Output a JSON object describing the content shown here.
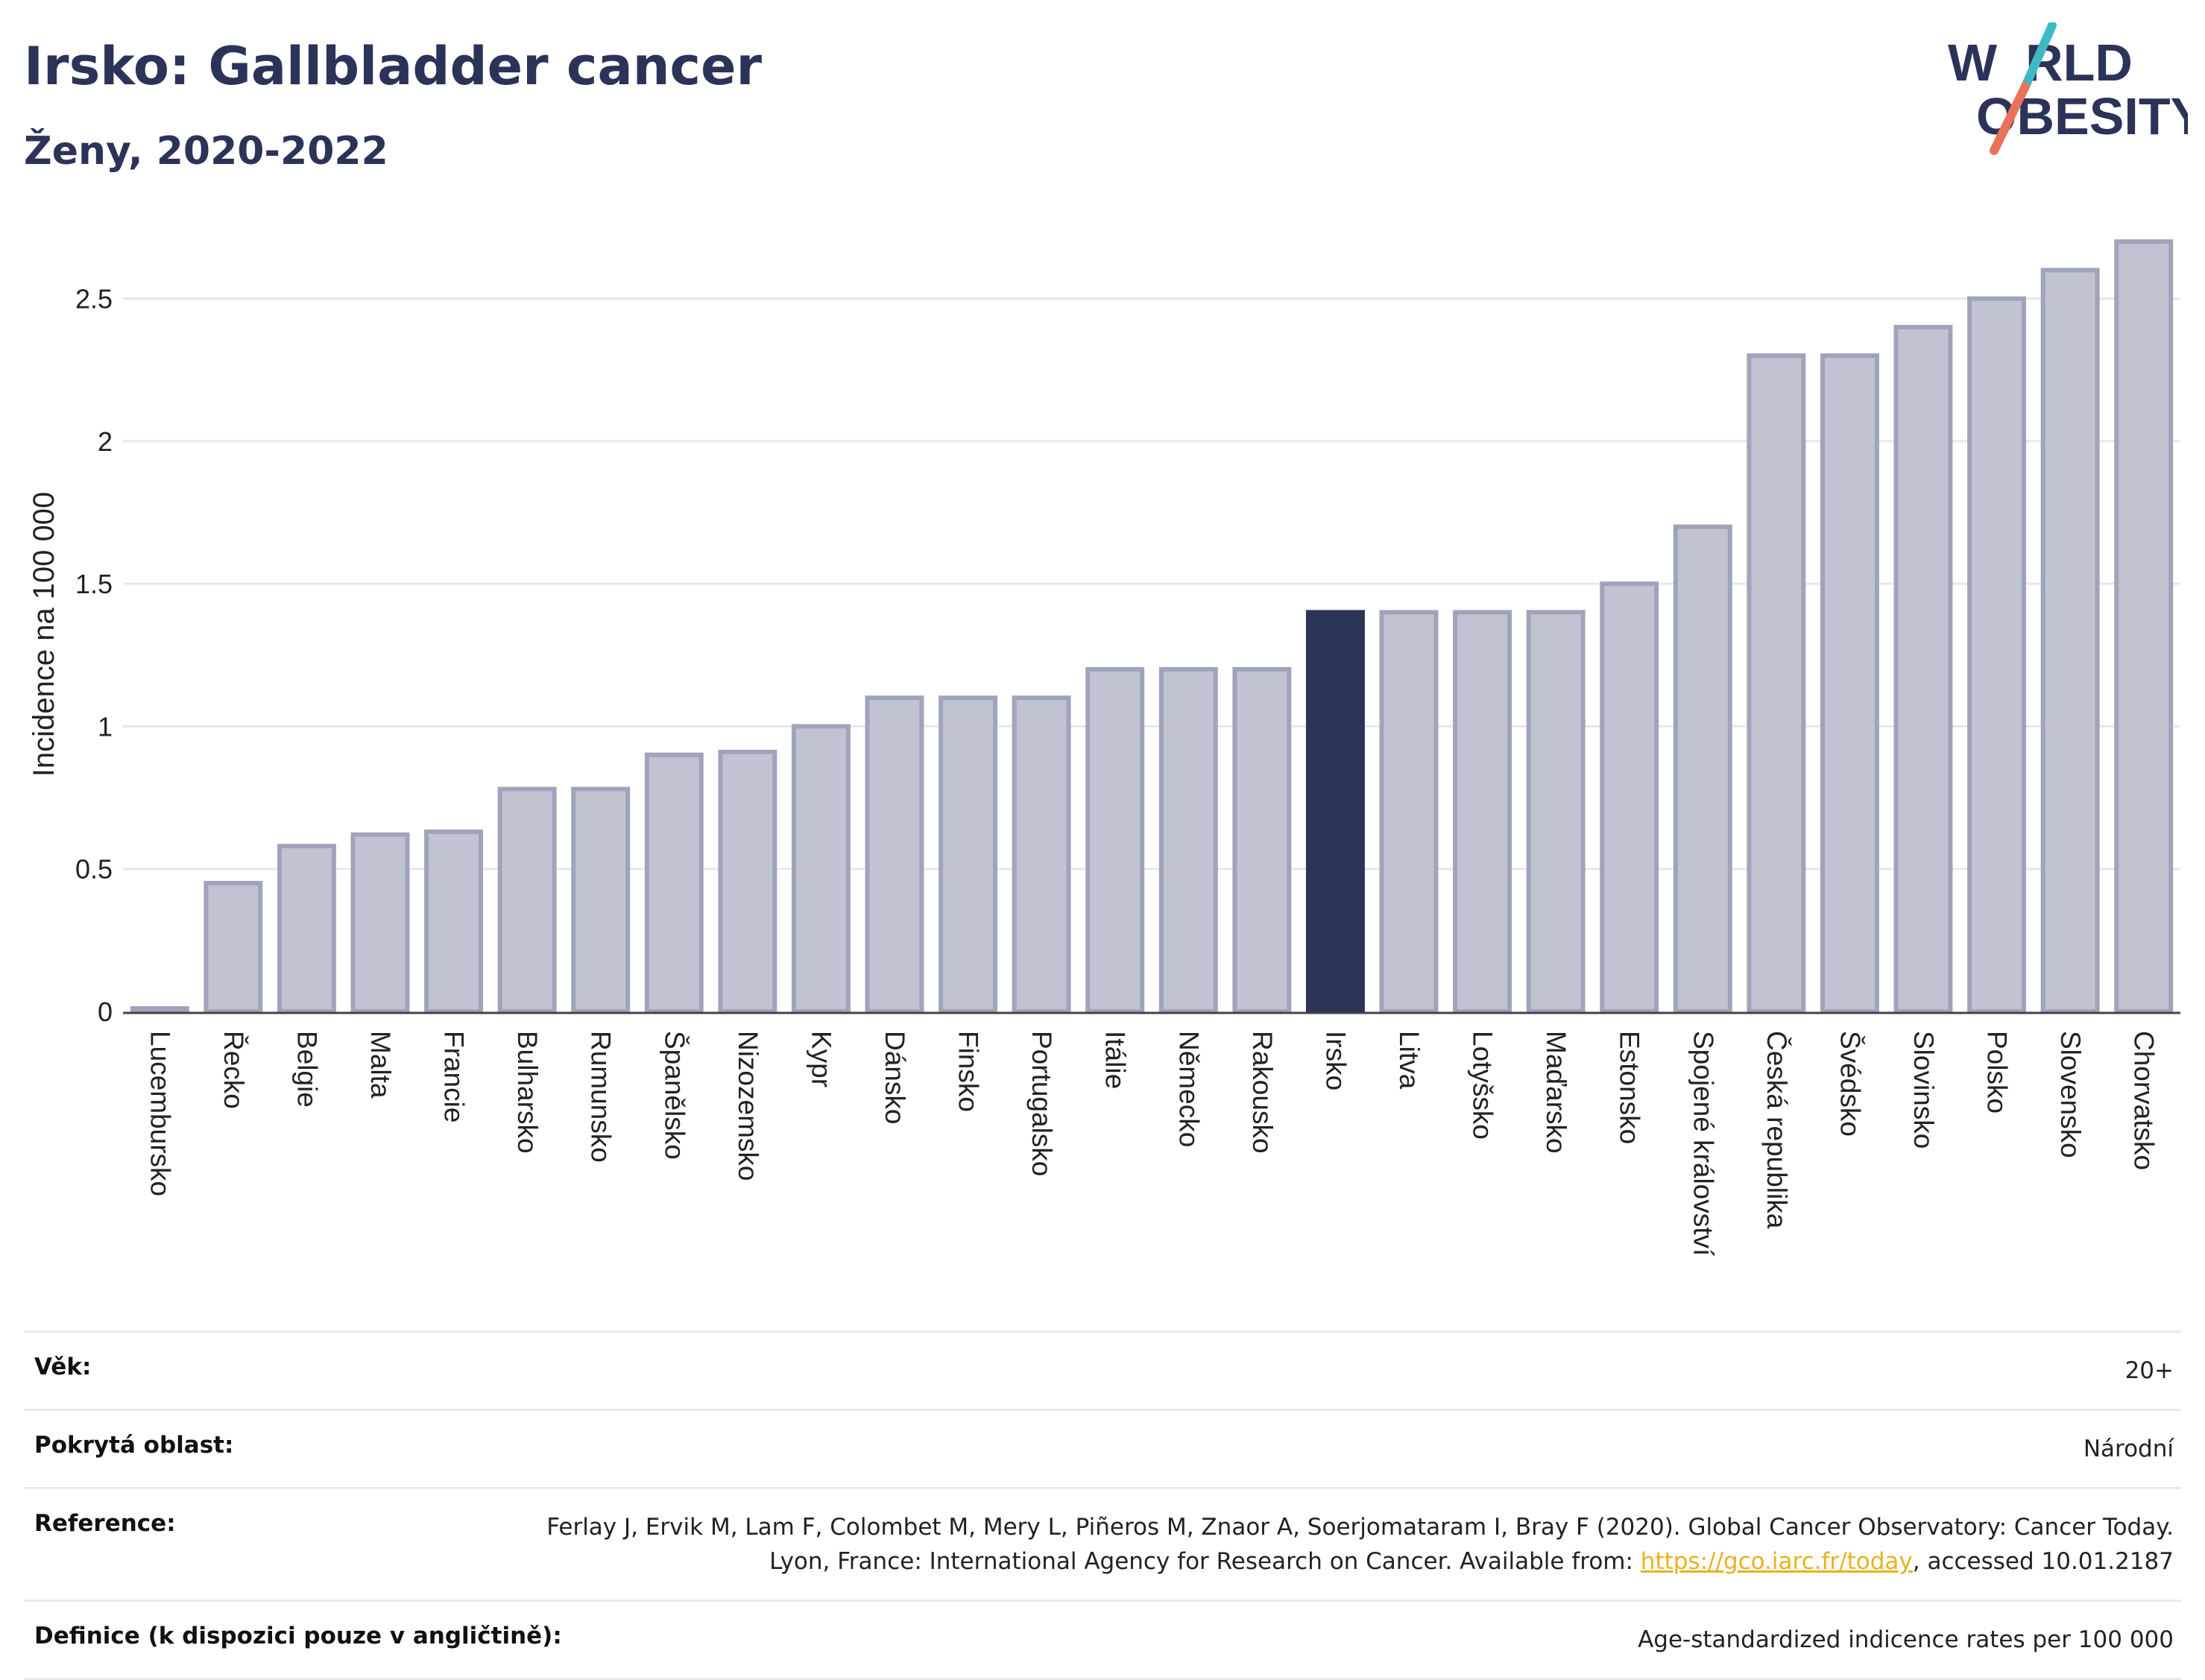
{
  "header": {
    "title": "Irsko: Gallbladder cancer",
    "subtitle": "Ženy, 2020-2022"
  },
  "logo": {
    "line1_a": "W",
    "line1_b": "RLD",
    "line2_a": "O",
    "line2_b": "BESITY",
    "accent_colors": [
      "#3fb8c4",
      "#e8735a"
    ]
  },
  "colors": {
    "bar": "#c0c3d1",
    "bar_border": "#9fa4bb",
    "highlight": "#2b3359",
    "grid": "#e6e8ee"
  },
  "chart_data": {
    "type": "bar",
    "categories": [
      "Lucembursko",
      "Řecko",
      "Belgie",
      "Malta",
      "Francie",
      "Bulharsko",
      "Rumunsko",
      "Španělsko",
      "Nizozemsko",
      "Kypr",
      "Dánsko",
      "Finsko",
      "Portugalsko",
      "Itálie",
      "Německo",
      "Rakousko",
      "Irsko",
      "Litva",
      "Lotyšsko",
      "Maďarsko",
      "Estonsko",
      "Spojené království",
      "Česká republika",
      "Švédsko",
      "Slovinsko",
      "Polsko",
      "Slovensko",
      "Chorvatsko"
    ],
    "values": [
      0.01,
      0.45,
      0.58,
      0.62,
      0.63,
      0.78,
      0.78,
      0.9,
      0.91,
      1.0,
      1.1,
      1.1,
      1.1,
      1.2,
      1.2,
      1.2,
      1.4,
      1.4,
      1.4,
      1.4,
      1.5,
      1.7,
      2.3,
      2.3,
      2.4,
      2.5,
      2.6,
      2.7
    ],
    "highlight": "Irsko",
    "ylabel": "Incidence na 100 000",
    "xlabel": "",
    "ylim": [
      0,
      2.75
    ],
    "yticks": [
      0,
      0.5,
      1,
      1.5,
      2,
      2.5
    ],
    "ytick_labels": [
      "0",
      "0.5",
      "1",
      "1.5",
      "2",
      "2.5"
    ],
    "grid": true
  },
  "info": {
    "age_label": "Věk:",
    "age_value": "20+",
    "area_label": "Pokrytá oblast:",
    "area_value": "Národní",
    "ref_label": "Reference:",
    "ref_text": "Ferlay J, Ervik M, Lam F, Colombet M, Mery L, Piñeros M, Znaor A, Soerjomataram I, Bray F (2020). Global Cancer Observatory: Cancer Today. Lyon, France: International Agency for Research on Cancer. Available from: ",
    "ref_link": "https://gco.iarc.fr/today",
    "ref_suffix": ", accessed 10.01.2187",
    "def_label": "Definice (k dispozici pouze v angličtině):",
    "def_value": "Age-standardized indicence rates per 100 000"
  }
}
